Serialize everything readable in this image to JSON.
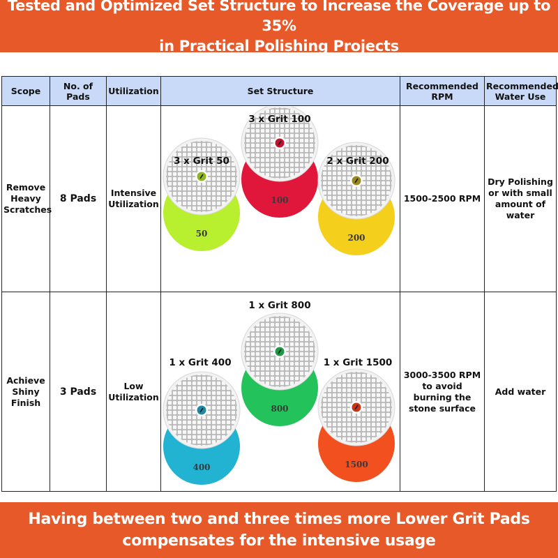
{
  "header": {
    "line1_plain": "Tested and Optimized Set Structure to ",
    "line1_highlight": "Increase the Coverage up to 35%",
    "line2": "in Practical Polishing Projects"
  },
  "table": {
    "columns": [
      "Scope",
      "No. of Pads",
      "Utilization",
      "Set Structure",
      "Recommended RPM",
      "Recommended Water Use"
    ],
    "rows": [
      {
        "scope": "Remove Heavy Scratches",
        "pads": "8 Pads",
        "utilization": "Intensive Utilization",
        "rpm": "1500-2500 RPM",
        "water": "Dry Polishing or with small amount of water",
        "grits": [
          {
            "label": "3 x Grit 50",
            "number": "50",
            "color": "#b8ef2e",
            "center": "#8fb51f"
          },
          {
            "label": "3 x Grit 100",
            "number": "100",
            "color": "#e0163a",
            "center": "#c3122f"
          },
          {
            "label": "2 x Grit 200",
            "number": "200",
            "color": "#f4cf1c",
            "center": "#9a8a1d"
          }
        ]
      },
      {
        "scope": "Achieve Shiny Finish",
        "pads": "3 Pads",
        "utilization": "Low Utilization",
        "rpm": "3000-3500 RPM to avoid burning the stone surface",
        "water": "Add water",
        "grits": [
          {
            "label": "1 x Grit 400",
            "number": "400",
            "color": "#22b3d3",
            "center": "#1e8aa3"
          },
          {
            "label": "1 x Grit 800",
            "number": "800",
            "color": "#23c25a",
            "center": "#1c9a48"
          },
          {
            "label": "1 x Grit 1500",
            "number": "1500",
            "color": "#f2501f",
            "center": "#c8341a"
          }
        ]
      }
    ]
  },
  "footer": {
    "line1": "Having between two and three times more Lower Grit Pads",
    "line2": "compensates for the intensive usage"
  }
}
